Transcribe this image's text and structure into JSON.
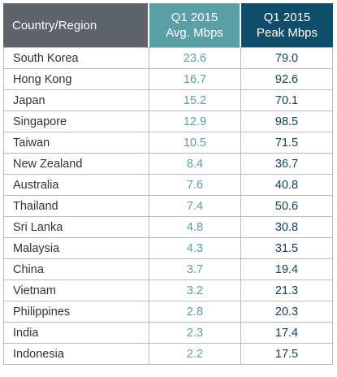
{
  "chart_data": {
    "type": "table",
    "columns": [
      "Country/Region",
      "Q1 2015\nAvg. Mbps",
      "Q1 2015\nPeak Mbps"
    ],
    "header": {
      "country": "Country/Region",
      "avg_line1": "Q1 2015",
      "avg_line2": "Avg. Mbps",
      "peak_line1": "Q1 2015",
      "peak_line2": "Peak Mbps"
    },
    "rows": [
      {
        "country": "South Korea",
        "avg": "23.6",
        "peak": "79.0"
      },
      {
        "country": "Hong Kong",
        "avg": "16.7",
        "peak": "92.6"
      },
      {
        "country": "Japan",
        "avg": "15.2",
        "peak": "70.1"
      },
      {
        "country": "Singapore",
        "avg": "12.9",
        "peak": "98.5"
      },
      {
        "country": "Taiwan",
        "avg": "10.5",
        "peak": "71.5"
      },
      {
        "country": "New Zealand",
        "avg": "8.4",
        "peak": "36.7"
      },
      {
        "country": "Australia",
        "avg": "7.6",
        "peak": "40.8"
      },
      {
        "country": "Thailand",
        "avg": "7.4",
        "peak": "50.6"
      },
      {
        "country": "Sri Lanka",
        "avg": "4.8",
        "peak": "30.8"
      },
      {
        "country": "Malaysia",
        "avg": "4.3",
        "peak": "31.5"
      },
      {
        "country": "China",
        "avg": "3.7",
        "peak": "19.4"
      },
      {
        "country": "Vietnam",
        "avg": "3.2",
        "peak": "21.3"
      },
      {
        "country": "Philippines",
        "avg": "2.8",
        "peak": "20.3"
      },
      {
        "country": "India",
        "avg": "2.3",
        "peak": "17.4"
      },
      {
        "country": "Indonesia",
        "avg": "2.2",
        "peak": "17.5"
      }
    ],
    "colors": {
      "country_header": "#5f636a",
      "avg_header": "#5a9ea6",
      "peak_header": "#0f4d6b",
      "avg_text": "#5c9ea6",
      "peak_text": "#123f59"
    }
  }
}
